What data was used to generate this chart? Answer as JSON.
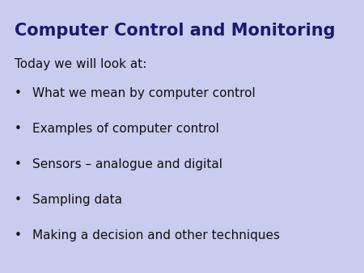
{
  "background_color": "#c8ccee",
  "title": "Computer Control and Monitoring",
  "title_color": "#1a1a6e",
  "title_fontsize": 15,
  "subtitle": "Today we will look at:",
  "subtitle_color": "#111111",
  "subtitle_fontsize": 11,
  "bullet_points": [
    "What we mean by computer control",
    "Examples of computer control",
    "Sensors – analogue and digital",
    "Sampling data",
    "Making a decision and other techniques"
  ],
  "bullet_color": "#111111",
  "bullet_fontsize": 11,
  "bullet_char": "•"
}
